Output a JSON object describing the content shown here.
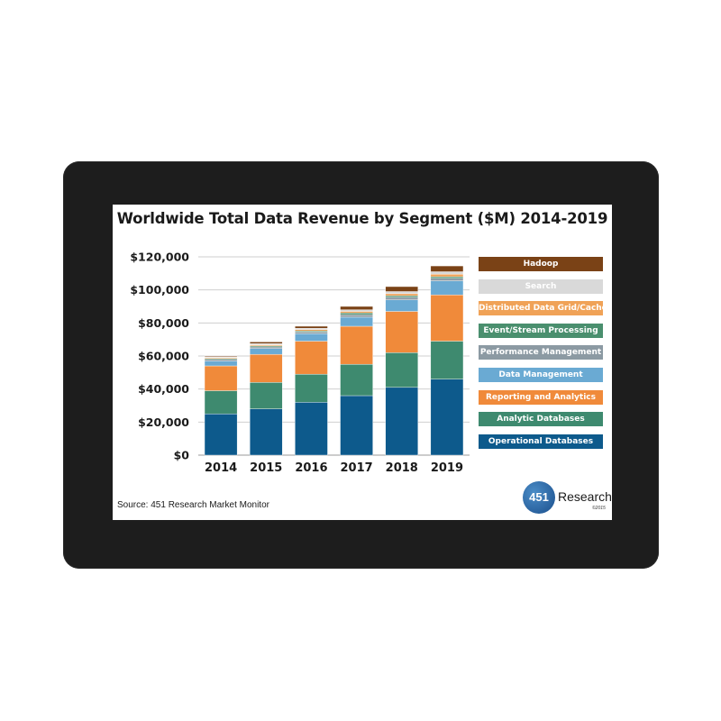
{
  "chart_data": {
    "type": "bar",
    "stacked": true,
    "title": "Worldwide Total Data Revenue by Segment ($M) 2014-2019",
    "categories": [
      "2014",
      "2015",
      "2016",
      "2017",
      "2018",
      "2019"
    ],
    "yticks": [
      "$0",
      "$20,000",
      "$40,000",
      "$60,000",
      "$80,000",
      "$100,000",
      "$120,000"
    ],
    "ylim": [
      0,
      120000
    ],
    "grid": true,
    "legend_position": "right",
    "series": [
      {
        "name": "Operational Databases",
        "color": "#0d5a8c",
        "values": [
          25000,
          28000,
          32000,
          36000,
          41000,
          46000
        ]
      },
      {
        "name": "Analytic Databases",
        "color": "#3e8a6f",
        "values": [
          14000,
          16000,
          17000,
          19000,
          21000,
          23000
        ]
      },
      {
        "name": "Reporting and Analytics",
        "color": "#f08a3a",
        "values": [
          15000,
          17000,
          20000,
          23000,
          25000,
          28000
        ]
      },
      {
        "name": "Data Management",
        "color": "#6aaad3",
        "values": [
          3000,
          3500,
          4500,
          5500,
          7000,
          8500
        ]
      },
      {
        "name": "Performance Management",
        "color": "#8c9aa3",
        "values": [
          1000,
          1000,
          1000,
          1500,
          1500,
          1500
        ]
      },
      {
        "name": "Event/Stream Processing",
        "color": "#4a8f6e",
        "values": [
          500,
          600,
          700,
          1000,
          1000,
          1000
        ]
      },
      {
        "name": "Distributed Data Grid/Cache",
        "color": "#f0a257",
        "values": [
          500,
          700,
          800,
          1000,
          1200,
          1500
        ]
      },
      {
        "name": "Search",
        "color": "#d9d9d9",
        "values": [
          500,
          700,
          800,
          1000,
          1300,
          1500
        ]
      },
      {
        "name": "Hadoop",
        "color": "#7a4216",
        "values": [
          500,
          1000,
          1200,
          2000,
          3000,
          3500
        ]
      }
    ]
  },
  "footer": {
    "source": "Source:  451 Research Market Monitor"
  },
  "logo": {
    "number": "451",
    "name": "Research",
    "copyright": "©2015"
  }
}
